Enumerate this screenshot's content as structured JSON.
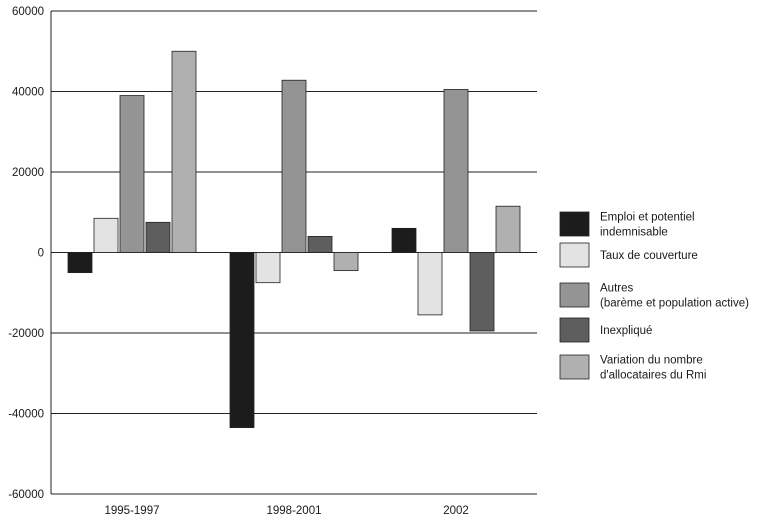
{
  "chart_data": {
    "type": "bar",
    "categories": [
      "1995-1997",
      "1998-2001",
      "2002"
    ],
    "ylim": [
      -60000,
      60000
    ],
    "yticks": [
      -60000,
      -40000,
      -20000,
      0,
      20000,
      40000,
      60000
    ],
    "ytick_labels": [
      "-60000",
      "-40000",
      "-20000",
      "0",
      "20000",
      "40000",
      "60000"
    ],
    "grid": "horizontal",
    "legend_position": "right",
    "series": [
      {
        "name_lines": [
          "Emploi et potentiel",
          "indemnisable"
        ],
        "color": "#1c1c1c",
        "values": [
          -5000,
          -43500,
          6000
        ]
      },
      {
        "name_lines": [
          "Taux de couverture"
        ],
        "color": "#e3e3e3",
        "values": [
          8500,
          -7500,
          -15500
        ]
      },
      {
        "name_lines": [
          "Autres",
          "(barème et population active)"
        ],
        "color": "#949494",
        "values": [
          39000,
          42800,
          40500
        ]
      },
      {
        "name_lines": [
          "Inexpliqué"
        ],
        "color": "#5e5e5e",
        "values": [
          7500,
          4000,
          -19500
        ]
      },
      {
        "name_lines": [
          "Variation du nombre",
          "d'allocataires du Rmi"
        ],
        "color": "#b0b0b0",
        "values": [
          50000,
          -4500,
          11500
        ]
      }
    ]
  }
}
